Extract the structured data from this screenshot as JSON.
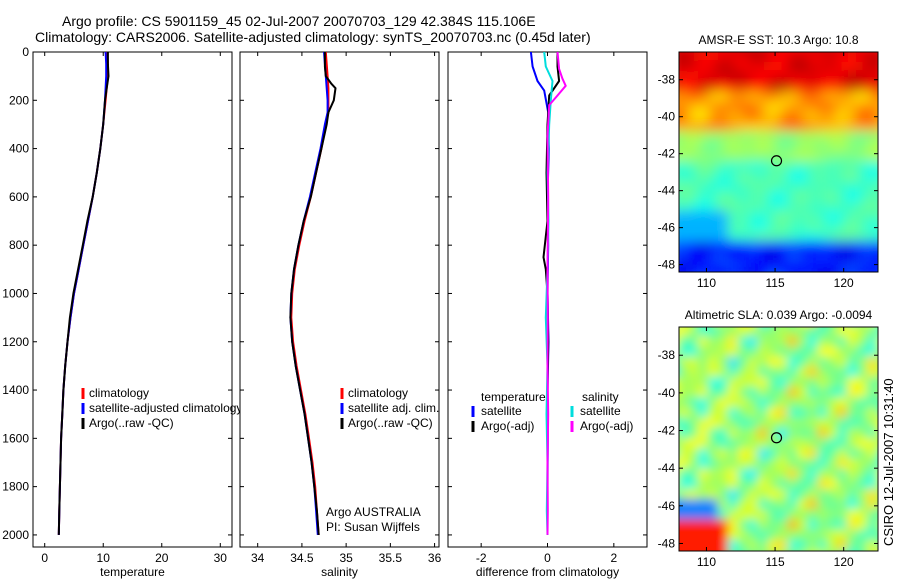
{
  "title": {
    "line1": "Argo profile: CS 5901159_45 02-Jul-2007 20070703_129 42.384S 115.106E",
    "line2": "Climatology: CARS2006. Satellite-adjusted climatology: synTS_20070703.nc (0.45d later)"
  },
  "credit": "CSIRO 12-Jul-2007 10:31:40",
  "colors": {
    "climatology": "#ff0000",
    "satellite": "#0000ff",
    "argo": "#000000",
    "sal_satellite": "#00dddd",
    "sal_argo": "#ff00ff"
  },
  "chart_data": [
    {
      "type": "line",
      "id": "temperature",
      "xlabel": "temperature",
      "xlim": [
        -2,
        32
      ],
      "ylim": [
        0,
        2050
      ],
      "y_reversed": true,
      "xticks": [
        0,
        10,
        20,
        30
      ],
      "yticks": [
        0,
        200,
        400,
        600,
        800,
        1000,
        1200,
        1400,
        1600,
        1800,
        2000
      ],
      "legend": [
        "climatology",
        "satellite-adjusted climatology",
        "Argo(..raw -QC)"
      ],
      "series": [
        {
          "name": "climatology",
          "color": "#ff0000",
          "points": [
            [
              10.7,
              0
            ],
            [
              10.8,
              50
            ],
            [
              10.8,
              100
            ],
            [
              10.6,
              150
            ],
            [
              10.4,
              200
            ],
            [
              10.0,
              300
            ],
            [
              9.5,
              400
            ],
            [
              8.9,
              500
            ],
            [
              8.2,
              600
            ],
            [
              7.4,
              700
            ],
            [
              6.6,
              800
            ],
            [
              5.8,
              900
            ],
            [
              5.0,
              1000
            ],
            [
              4.4,
              1100
            ],
            [
              3.9,
              1200
            ],
            [
              3.5,
              1300
            ],
            [
              3.2,
              1400
            ],
            [
              3.0,
              1500
            ],
            [
              2.8,
              1600
            ],
            [
              2.7,
              1700
            ],
            [
              2.6,
              1800
            ],
            [
              2.5,
              1900
            ],
            [
              2.4,
              2000
            ]
          ]
        },
        {
          "name": "satellite-adjusted climatology",
          "color": "#0000ff",
          "points": [
            [
              10.4,
              0
            ],
            [
              10.5,
              50
            ],
            [
              10.5,
              100
            ],
            [
              10.4,
              150
            ],
            [
              10.3,
              200
            ],
            [
              10.0,
              300
            ],
            [
              9.5,
              400
            ],
            [
              8.9,
              500
            ],
            [
              8.2,
              600
            ],
            [
              7.4,
              700
            ],
            [
              6.6,
              800
            ],
            [
              5.8,
              900
            ],
            [
              5.0,
              1000
            ],
            [
              4.4,
              1100
            ],
            [
              3.9,
              1200
            ],
            [
              3.5,
              1300
            ],
            [
              3.2,
              1400
            ],
            [
              3.0,
              1500
            ],
            [
              2.8,
              1600
            ],
            [
              2.7,
              1700
            ],
            [
              2.6,
              1800
            ],
            [
              2.5,
              1900
            ],
            [
              2.4,
              2000
            ]
          ]
        },
        {
          "name": "Argo(..raw -QC)",
          "color": "#000000",
          "points": [
            [
              10.8,
              0
            ],
            [
              10.8,
              50
            ],
            [
              10.9,
              100
            ],
            [
              10.6,
              150
            ],
            [
              10.3,
              200
            ],
            [
              10.0,
              300
            ],
            [
              9.5,
              400
            ],
            [
              8.9,
              500
            ],
            [
              8.2,
              600
            ],
            [
              7.3,
              700
            ],
            [
              6.5,
              800
            ],
            [
              5.7,
              900
            ],
            [
              4.9,
              1000
            ],
            [
              4.3,
              1100
            ],
            [
              3.9,
              1200
            ],
            [
              3.5,
              1300
            ],
            [
              3.2,
              1400
            ],
            [
              3.0,
              1500
            ],
            [
              2.8,
              1600
            ],
            [
              2.7,
              1700
            ],
            [
              2.6,
              1800
            ],
            [
              2.5,
              1900
            ],
            [
              2.4,
              2000
            ]
          ]
        }
      ]
    },
    {
      "type": "line",
      "id": "salinity",
      "xlabel": "salinity",
      "xlim": [
        33.8,
        36.05
      ],
      "ylim": [
        0,
        2050
      ],
      "y_reversed": true,
      "xticks": [
        34,
        34.5,
        35,
        35.5,
        36
      ],
      "legend": [
        "climatology",
        "satellite adj. clim.",
        "Argo(..raw -QC)"
      ],
      "annotation": [
        "Argo AUSTRALIA",
        "PI: Susan Wijffels"
      ],
      "series": [
        {
          "name": "climatology",
          "color": "#ff0000",
          "points": [
            [
              34.77,
              0
            ],
            [
              34.78,
              50
            ],
            [
              34.79,
              100
            ],
            [
              34.8,
              150
            ],
            [
              34.8,
              200
            ],
            [
              34.8,
              250
            ],
            [
              34.77,
              300
            ],
            [
              34.72,
              400
            ],
            [
              34.66,
              500
            ],
            [
              34.6,
              600
            ],
            [
              34.53,
              700
            ],
            [
              34.47,
              800
            ],
            [
              34.42,
              900
            ],
            [
              34.39,
              1000
            ],
            [
              34.38,
              1100
            ],
            [
              34.4,
              1200
            ],
            [
              34.44,
              1300
            ],
            [
              34.49,
              1400
            ],
            [
              34.54,
              1500
            ],
            [
              34.58,
              1600
            ],
            [
              34.62,
              1700
            ],
            [
              34.65,
              1800
            ],
            [
              34.67,
              1900
            ],
            [
              34.69,
              2000
            ]
          ]
        },
        {
          "name": "satellite adj. clim.",
          "color": "#0000ff",
          "points": [
            [
              34.75,
              0
            ],
            [
              34.76,
              50
            ],
            [
              34.77,
              100
            ],
            [
              34.78,
              150
            ],
            [
              34.79,
              200
            ],
            [
              34.79,
              250
            ],
            [
              34.76,
              300
            ],
            [
              34.71,
              400
            ],
            [
              34.65,
              500
            ],
            [
              34.59,
              600
            ],
            [
              34.52,
              700
            ],
            [
              34.46,
              800
            ],
            [
              34.41,
              900
            ],
            [
              34.38,
              1000
            ],
            [
              34.37,
              1100
            ],
            [
              34.39,
              1200
            ],
            [
              34.43,
              1300
            ],
            [
              34.48,
              1400
            ],
            [
              34.53,
              1500
            ],
            [
              34.57,
              1600
            ],
            [
              34.61,
              1700
            ],
            [
              34.64,
              1800
            ],
            [
              34.66,
              1900
            ],
            [
              34.68,
              2000
            ]
          ]
        },
        {
          "name": "Argo(..raw -QC)",
          "color": "#000000",
          "points": [
            [
              34.76,
              0
            ],
            [
              34.76,
              60
            ],
            [
              34.77,
              100
            ],
            [
              34.83,
              130
            ],
            [
              34.88,
              150
            ],
            [
              34.86,
              200
            ],
            [
              34.8,
              250
            ],
            [
              34.78,
              300
            ],
            [
              34.72,
              400
            ],
            [
              34.66,
              500
            ],
            [
              34.6,
              600
            ],
            [
              34.52,
              700
            ],
            [
              34.46,
              800
            ],
            [
              34.41,
              900
            ],
            [
              34.38,
              1000
            ],
            [
              34.37,
              1100
            ],
            [
              34.39,
              1200
            ],
            [
              34.43,
              1300
            ],
            [
              34.48,
              1400
            ],
            [
              34.53,
              1500
            ],
            [
              34.57,
              1600
            ],
            [
              34.61,
              1700
            ],
            [
              34.64,
              1800
            ],
            [
              34.67,
              1900
            ],
            [
              34.69,
              2000
            ]
          ]
        }
      ]
    },
    {
      "type": "line",
      "id": "difference",
      "xlabel": "difference from climatology",
      "xlim": [
        -3,
        3
      ],
      "ylim": [
        0,
        2050
      ],
      "y_reversed": true,
      "xticks": [
        -2,
        0,
        2
      ],
      "legend_headers": [
        "temperature",
        "salinity"
      ],
      "legend": [
        "satellite",
        "Argo(-adj)",
        "satellite",
        "Argo(-adj)"
      ],
      "series": [
        {
          "name": "temperature satellite",
          "color": "#0000ff",
          "points": [
            [
              -0.5,
              0
            ],
            [
              -0.45,
              60
            ],
            [
              -0.3,
              120
            ],
            [
              -0.1,
              160
            ],
            [
              0.02,
              250
            ],
            [
              0.04,
              400
            ],
            [
              0.0,
              600
            ],
            [
              0.02,
              800
            ],
            [
              0.0,
              1000
            ],
            [
              0.03,
              1200
            ],
            [
              0.0,
              1400
            ],
            [
              0.01,
              1600
            ],
            [
              0.0,
              1800
            ],
            [
              0.0,
              2000
            ]
          ]
        },
        {
          "name": "temperature Argo(-adj)",
          "color": "#000000",
          "points": [
            [
              0.3,
              0
            ],
            [
              0.3,
              60
            ],
            [
              0.35,
              120
            ],
            [
              0.05,
              180
            ],
            [
              0.0,
              300
            ],
            [
              -0.03,
              500
            ],
            [
              0.0,
              700
            ],
            [
              -0.12,
              850
            ],
            [
              -0.05,
              900
            ],
            [
              0.0,
              1000
            ],
            [
              0.02,
              1200
            ],
            [
              0.0,
              1400
            ],
            [
              0.0,
              1600
            ],
            [
              0.0,
              1800
            ],
            [
              0.0,
              2000
            ]
          ]
        },
        {
          "name": "salinity satellite",
          "color": "#00dddd",
          "points": [
            [
              -0.1,
              0
            ],
            [
              -0.05,
              60
            ],
            [
              0.15,
              120
            ],
            [
              0.1,
              200
            ],
            [
              0.05,
              300
            ],
            [
              0.0,
              500
            ],
            [
              0.03,
              700
            ],
            [
              0.0,
              900
            ],
            [
              -0.05,
              1100
            ],
            [
              0.0,
              1300
            ],
            [
              -0.03,
              1500
            ],
            [
              0.0,
              1700
            ],
            [
              -0.02,
              1900
            ],
            [
              0.0,
              2000
            ]
          ]
        },
        {
          "name": "salinity Argo(-adj)",
          "color": "#ff00ff",
          "points": [
            [
              0.3,
              0
            ],
            [
              0.35,
              70
            ],
            [
              0.45,
              110
            ],
            [
              0.55,
              140
            ],
            [
              0.3,
              180
            ],
            [
              0.05,
              220
            ],
            [
              0.0,
              350
            ],
            [
              0.02,
              600
            ],
            [
              0.0,
              900
            ],
            [
              0.01,
              1100
            ],
            [
              0.0,
              1300
            ],
            [
              0.02,
              1500
            ],
            [
              0.0,
              1700
            ],
            [
              0.01,
              1900
            ],
            [
              0.0,
              2000
            ]
          ]
        }
      ]
    },
    {
      "type": "heatmap",
      "id": "sst-map",
      "title": "AMSR-E SST: 10.3 Argo: 10.8",
      "xlim": [
        108,
        122.5
      ],
      "ylim": [
        -48.4,
        -36.5
      ],
      "xticks": [
        110,
        115,
        120
      ],
      "yticks": [
        -38,
        -40,
        -42,
        -44,
        -46,
        -48
      ],
      "float_position": [
        115.106,
        -42.384
      ]
    },
    {
      "type": "heatmap",
      "id": "sla-map",
      "title": "Altimetric SLA: 0.039 Argo: -0.0094",
      "xlim": [
        108,
        122.5
      ],
      "ylim": [
        -48.4,
        -36.5
      ],
      "xticks": [
        110,
        115,
        120
      ],
      "yticks": [
        -38,
        -40,
        -42,
        -44,
        -46,
        -48
      ],
      "float_position": [
        115.106,
        -42.384
      ]
    }
  ]
}
